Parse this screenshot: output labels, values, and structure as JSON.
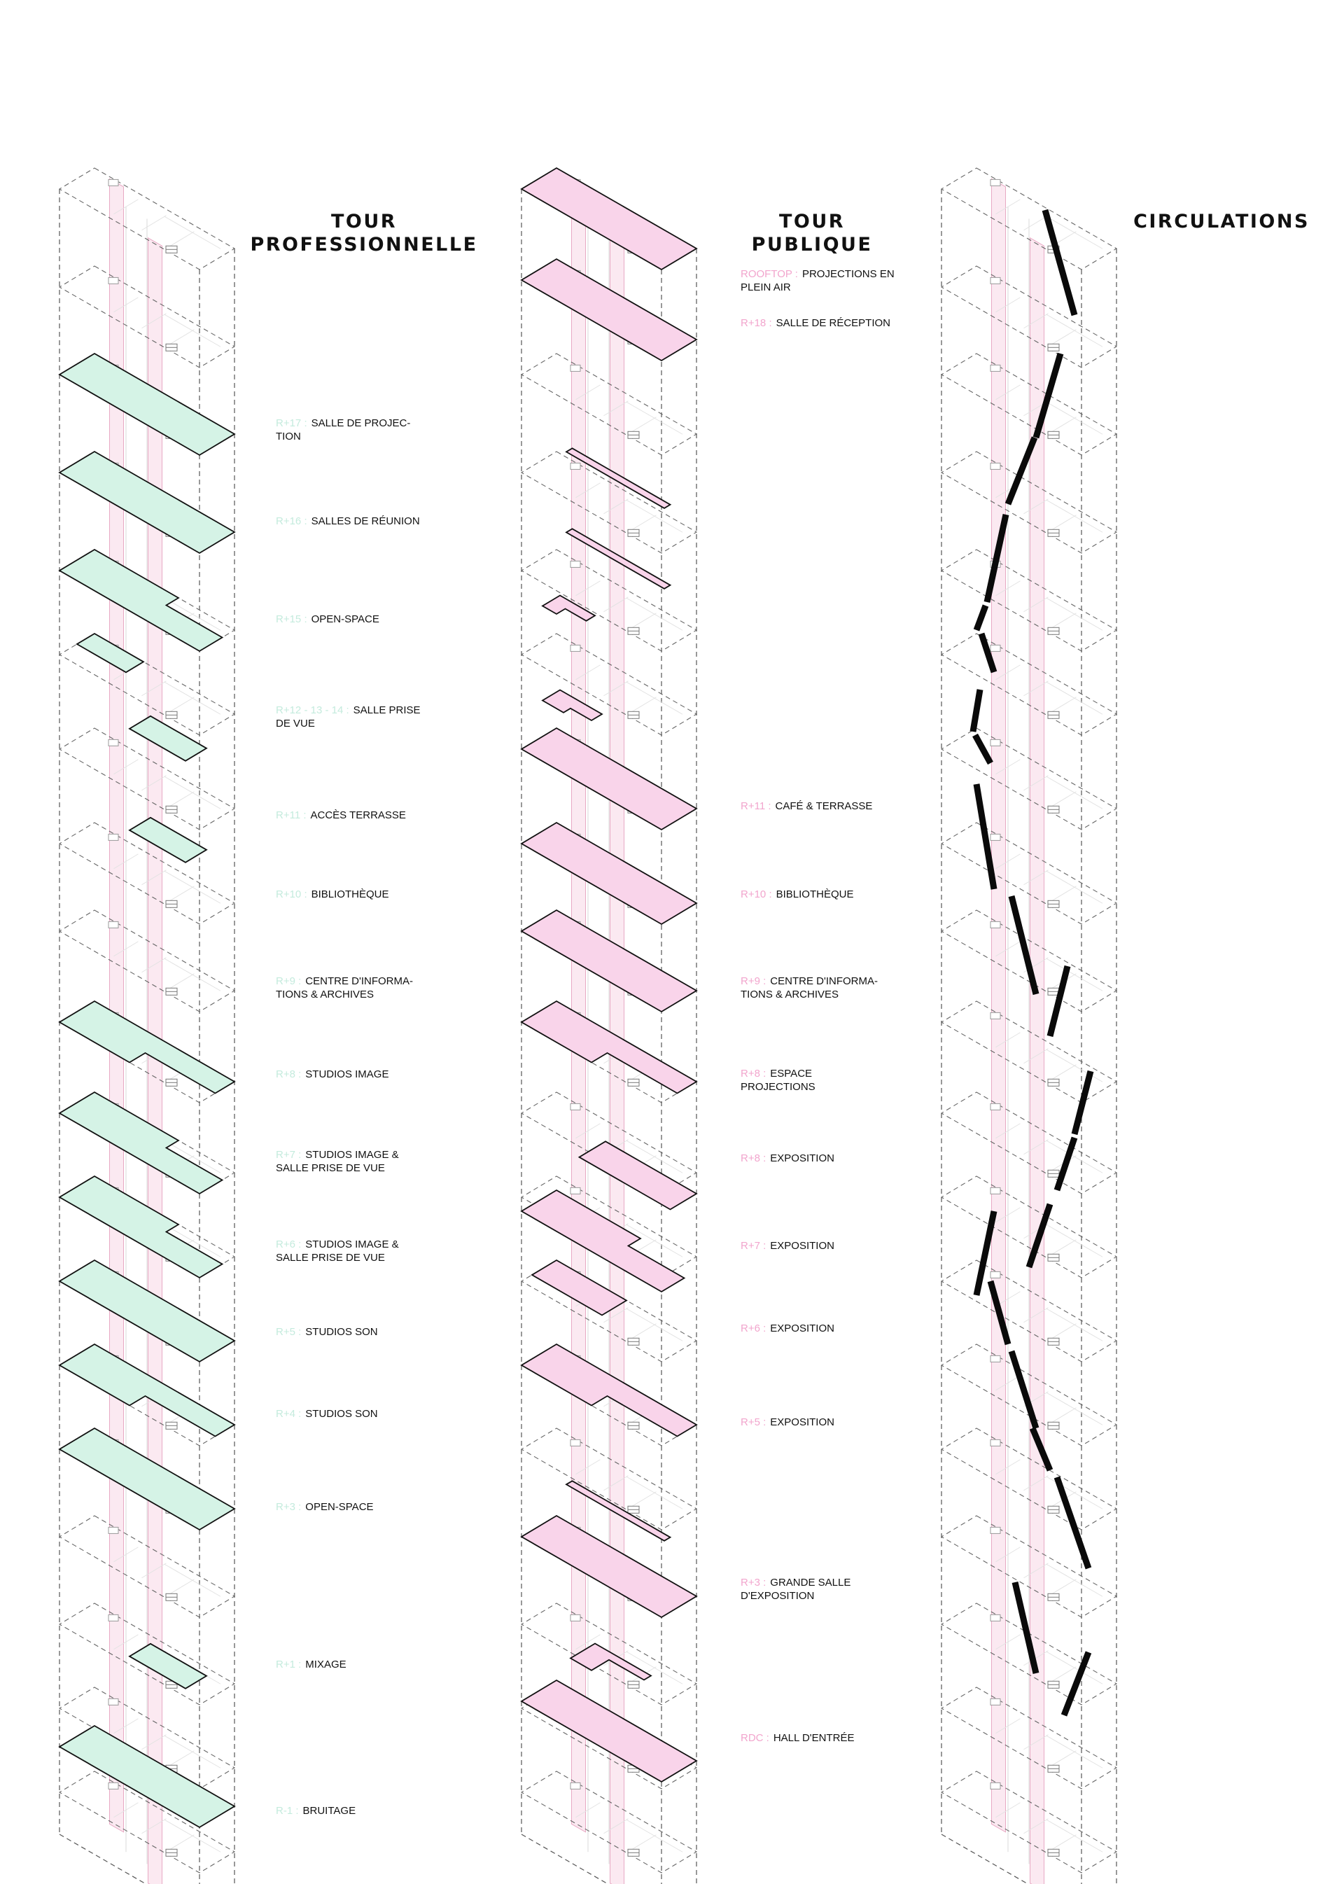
{
  "columns": [
    {
      "id": "professionnelle",
      "title_lines": [
        "TOUR",
        "PROFESSIONNELLE"
      ],
      "accent": "#d5f3e6",
      "level_color": "#c4ebdd",
      "labels": [
        {
          "level": "R+17 :",
          "text": "SALLE DE PROJEC-\nTION"
        },
        {
          "level": "R+16 :",
          "text": "SALLES DE RÉUNION"
        },
        {
          "level": "R+15 :",
          "text": "OPEN-SPACE"
        },
        {
          "level": "R+12 - 13 - 14 :",
          "text": "SALLE PRISE\nDE VUE"
        },
        {
          "level": "R+11 :",
          "text": "ACCÈS TERRASSE"
        },
        {
          "level": "R+10 :",
          "text": "BIBLIOTHÈQUE"
        },
        {
          "level": "R+9 :",
          "text": "CENTRE D'INFORMA-\nTIONS & ARCHIVES"
        },
        {
          "level": "R+8 :",
          "text": "STUDIOS IMAGE"
        },
        {
          "level": "R+7 :",
          "text": "STUDIOS IMAGE &\nSALLE PRISE DE VUE"
        },
        {
          "level": "R+6 :",
          "text": "STUDIOS IMAGE &\nSALLE PRISE DE VUE"
        },
        {
          "level": "R+5 :",
          "text": "STUDIOS SON"
        },
        {
          "level": "R+4 :",
          "text": "STUDIOS SON"
        },
        {
          "level": "R+3 :",
          "text": "OPEN-SPACE"
        },
        {
          "level": "R+1 :",
          "text": "MIXAGE"
        },
        {
          "level": "R-1 :",
          "text": "BRUITAGE"
        }
      ]
    },
    {
      "id": "publique",
      "title_lines": [
        "TOUR",
        "PUBLIQUE"
      ],
      "accent": "#f9d4ea",
      "level_color": "#f2a5cd",
      "labels": [
        {
          "level": "ROOFTOP :",
          "text": "PROJECTIONS EN\nPLEIN AIR"
        },
        {
          "level": "R+18 :",
          "text": "SALLE DE RÉCEPTION"
        },
        {
          "level": "R+11 :",
          "text": "CAFÉ & TERRASSE"
        },
        {
          "level": "R+10 :",
          "text": "BIBLIOTHÈQUE"
        },
        {
          "level": "R+9 :",
          "text": "CENTRE D'INFORMA-\nTIONS & ARCHIVES"
        },
        {
          "level": "R+8 :",
          "text": "ESPACE\nPROJECTIONS"
        },
        {
          "level": "R+8 :",
          "text": "EXPOSITION"
        },
        {
          "level": "R+7 :",
          "text": "EXPOSITION"
        },
        {
          "level": "R+6 :",
          "text": "EXPOSITION"
        },
        {
          "level": "R+5 :",
          "text": "EXPOSITION"
        },
        {
          "level": "R+3 :",
          "text": "GRANDE SALLE\nD'EXPOSITION"
        },
        {
          "level": "RDC :",
          "text": "HALL D'ENTRÉE"
        }
      ]
    },
    {
      "id": "circulations",
      "title_lines": [
        "CIRCULATIONS"
      ],
      "accent": "#111111",
      "labels": []
    }
  ],
  "core_color": "#f7cfe0"
}
